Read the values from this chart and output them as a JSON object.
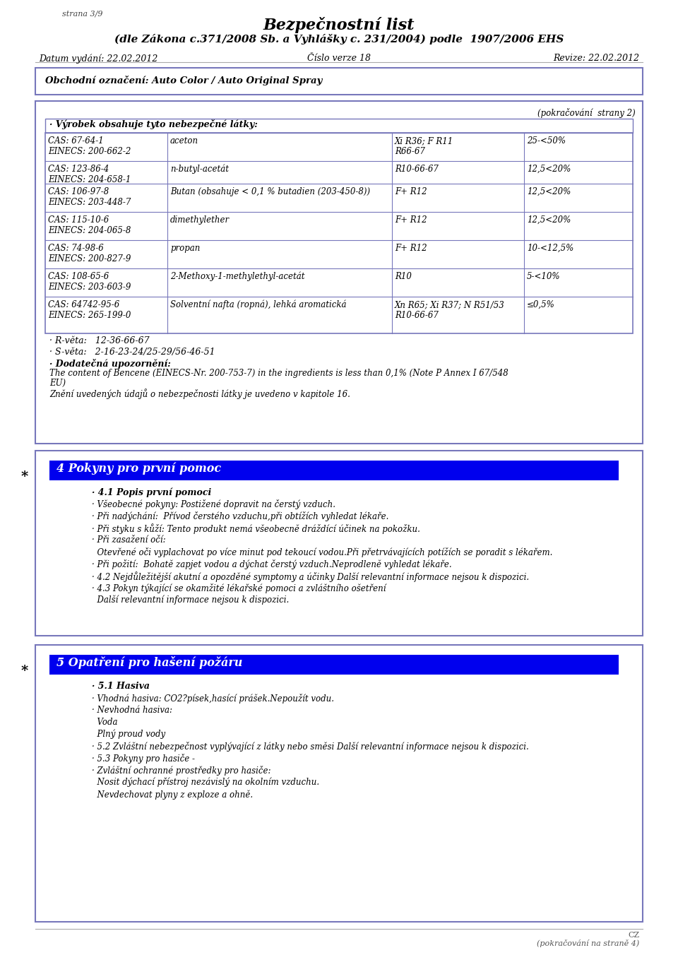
{
  "page_label": "strana 3/9",
  "title_line1": "Bezpečnostní list",
  "title_line2": "(dle Zákona c.371/2008 Sb. a Vyhlášky c. 231/2004) podle  1907/2006 EHS",
  "datum": "Datum vydání: 22.02.2012",
  "cislo": "Číslo verze 18",
  "revize": "Revize: 22.02.2012",
  "obchodni": "Obchodní označení: Auto Color / Auto Original Spray",
  "pokracovani_strany2": "(pokračování  strany 2)",
  "vyrobek_header": "· Výrobek obsahuje tyto nebezpečné látky:",
  "table_rows": [
    {
      "cas": "CAS: 67-64-1\nEINECS: 200-662-2",
      "name": "aceton",
      "risk": "Xi R36; F R11\nR66-67",
      "pct": "25-<50%"
    },
    {
      "cas": "CAS: 123-86-4\nEINECS: 204-658-1",
      "name": "n-butyl-acetát",
      "risk": "R10-66-67",
      "pct": "12,5<20%"
    },
    {
      "cas": "CAS: 106-97-8\nEINECS: 203-448-7",
      "name": "Butan (obsahuje < 0,1 % butadien (203-450-8))",
      "risk": "F+ R12",
      "pct": "12,5<20%"
    },
    {
      "cas": "CAS: 115-10-6\nEINECS: 204-065-8",
      "name": "dimethylether",
      "risk": "F+ R12",
      "pct": "12,5<20%"
    },
    {
      "cas": "CAS: 74-98-6\nEINECS: 200-827-9",
      "name": "propan",
      "risk": "F+ R12",
      "pct": "10-<12,5%"
    },
    {
      "cas": "CAS: 108-65-6\nEINECS: 203-603-9",
      "name": "2-Methoxy-1-methylethyl-acetát",
      "risk": "R10",
      "pct": "5-<10%"
    },
    {
      "cas": "CAS: 64742-95-6\nEINECS: 265-199-0",
      "name": "Solventní nafta (ropná), lehká aromatická",
      "risk": "Xn R65; Xi R37; N R51/53\nR10-66-67",
      "pct": "≤0,5%"
    }
  ],
  "r_veta": "· R-věta:   12-36-66-67",
  "s_veta": "· S-věta:   2-16-23-24/25-29/56-46-51",
  "dodatecna": "· Dodatečná upozornění:",
  "bencene_note1": "The content of Bencene (EINECS-Nr. 200-753-7) in the ingredients is less than 0,1% (Note P Annex I 67/548",
  "bencene_note2": "EU)",
  "zneni": "Znění uvedených údajů o nebezpečnosti látky je uvedeno v kapitole 16.",
  "section4_title": "4 Pokyny pro první pomoc",
  "s41_header": "· 4.1 Popis první pomoci",
  "s41_lines": [
    "· Všeobecné pokyny: Postižené dopravit na čerstý vzduch.",
    "· Při nadýchání:  Přívod čerstého vzduchu,při obtížích vyhledat lékaře.",
    "· Při styku s kůží: Tento produkt nemá všeobecně dráždící účinek na pokožku.",
    "· Při zasažení očí:",
    "  Otevřené oči vyplachovat po více minut pod tekoucí vodou.Při přetrvávajících potížích se poradit s lékařem.",
    "· Při požití:  Bohatě zapjet vodou a dýchat čerstý vzduch.Neprodleně vyhledat lékaře.",
    "· 4.2 Nejdůležitější akutní a opozděné symptomy a účinky Další relevantní informace nejsou k dispozici.",
    "· 4.3 Pokyn týkající se okamžité lékařské pomoci a zvláštního ošetření",
    "  Další relevantní informace nejsou k dispozici."
  ],
  "section5_title": "5 Opatření pro hašení požáru",
  "s51_header": "· 5.1 Hasiva",
  "s5_lines": [
    "· Vhodná hasiva: CO2?písek,hasící prášek.Nepoužít vodu.",
    "· Nevhodná hasiva:",
    "  Voda",
    "  Plný proud vody",
    "· 5.2 Zvláštní nebezpečnost vyplývající z látky nebo směsi Další relevantní informace nejsou k dispozici.",
    "· 5.3 Pokyny pro hasiče -",
    "· Zvláštní ochranné prostředky pro hasiče:",
    "  Nosit dýchací přístroj nezávislý na okolním vzduchu.",
    "  Nevdechovat plyny z exploze a ohně."
  ],
  "footer_cz": "CZ",
  "footer_pokracovani": "(pokračování na straně 4)",
  "border_color": "#7777bb",
  "header_bg": "#0000ee",
  "header_text_color": "#ffffff",
  "page_bg": "#ffffff",
  "text_color": "#000000",
  "table_border_color": "#7777bb"
}
